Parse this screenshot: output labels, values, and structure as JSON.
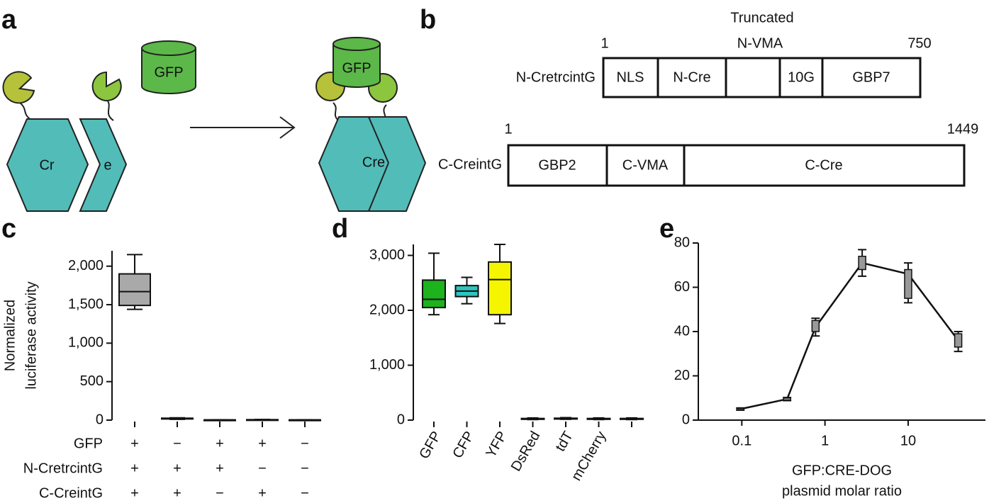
{
  "panel_a": {
    "letter": "a",
    "labels": [
      "GFP",
      "Cr",
      "e",
      "GFP",
      "Cre"
    ]
  },
  "panel_b": {
    "letter": "b",
    "annotation": [
      "Truncated",
      "N-VMA"
    ],
    "constructs": [
      {
        "name": "N-CretrcintG",
        "start": 1,
        "end": 750,
        "segments": [
          "NLS",
          "N-Cre",
          "10G",
          "GBP7"
        ]
      },
      {
        "name": "C-CreintG",
        "start": 1,
        "end": 1449,
        "segments": [
          "GBP2",
          "C-VMA",
          "C-Cre"
        ]
      }
    ]
  },
  "chart_data": [
    {
      "type": "box",
      "panel_label": "c",
      "ylabel": [
        "Normalized",
        "luciferase activity"
      ],
      "categories": [
        null,
        null,
        null,
        null,
        null
      ],
      "min": [
        1440,
        10,
        0,
        2,
        0
      ],
      "q1": [
        1490,
        15,
        1,
        4,
        1
      ],
      "median": [
        1670,
        20,
        2,
        5,
        2
      ],
      "q3": [
        1900,
        25,
        3,
        6,
        3
      ],
      "max": [
        2150,
        30,
        4,
        8,
        4
      ],
      "color": "#a9a9a9",
      "ylim": [
        0,
        2200
      ],
      "yticks": [
        0,
        500,
        {
          "value": 1000,
          "label": "1,000"
        },
        {
          "value": 1500,
          "label": "1,500"
        },
        {
          "value": 2000,
          "label": "2,000"
        }
      ],
      "conditions": [
        {
          "name": "GFP",
          "signs": [
            "+",
            "−",
            "+",
            "+",
            "−"
          ]
        },
        {
          "name": "N-CretrcintG",
          "signs": [
            "+",
            "+",
            "+",
            "−",
            "−"
          ]
        },
        {
          "name": "C-CreintG",
          "signs": [
            "+",
            "+",
            "−",
            "+",
            "−"
          ]
        }
      ]
    },
    {
      "type": "box",
      "panel_label": "d",
      "categories": [
        "GFP",
        "CFP",
        "YFP",
        "DsRed",
        "tdT",
        "mCherry",
        null
      ],
      "min": [
        1920,
        2120,
        1760,
        10,
        15,
        10,
        10
      ],
      "q1": [
        2050,
        2250,
        1920,
        15,
        20,
        15,
        15
      ],
      "median": [
        2200,
        2350,
        2560,
        20,
        25,
        20,
        20
      ],
      "q3": [
        2550,
        2450,
        2880,
        30,
        35,
        30,
        30
      ],
      "max": [
        3040,
        2600,
        3200,
        40,
        45,
        40,
        40
      ],
      "colors": [
        "#1db31d",
        "#2ec4c0",
        "#f5f500",
        "#a9a9a9",
        "#a9a9a9",
        "#a9a9a9",
        "#a9a9a9"
      ],
      "ylim": [
        0,
        3200
      ],
      "yticks": [
        0,
        {
          "value": 1000,
          "label": "1,000"
        },
        {
          "value": 2000,
          "label": "2,000"
        },
        {
          "value": 3000,
          "label": "3,000"
        }
      ]
    },
    {
      "type": "line",
      "panel_label": "e",
      "xlabel": [
        "GFP:CRE-DOG",
        "plasmid molar ratio"
      ],
      "x": [
        0.096,
        0.35,
        0.77,
        2.8,
        10,
        40
      ],
      "log_x": true,
      "series": [
        {
          "color": "#999999",
          "values": [
            5,
            9.5,
            42,
            71,
            66,
            36
          ],
          "q1": [
            4.8,
            9,
            40,
            68,
            55,
            33
          ],
          "q3": [
            5.3,
            10,
            45,
            74,
            68,
            39
          ],
          "min": [
            4.5,
            8.8,
            38,
            65,
            53,
            31
          ],
          "max": [
            5.5,
            10.2,
            46,
            77,
            71,
            40
          ]
        }
      ],
      "xlim": [
        0.03,
        85
      ],
      "xticks": [
        0.1,
        1,
        10
      ],
      "ylim": [
        0,
        80
      ],
      "yticks": [
        0,
        20,
        40,
        60,
        80
      ]
    }
  ]
}
